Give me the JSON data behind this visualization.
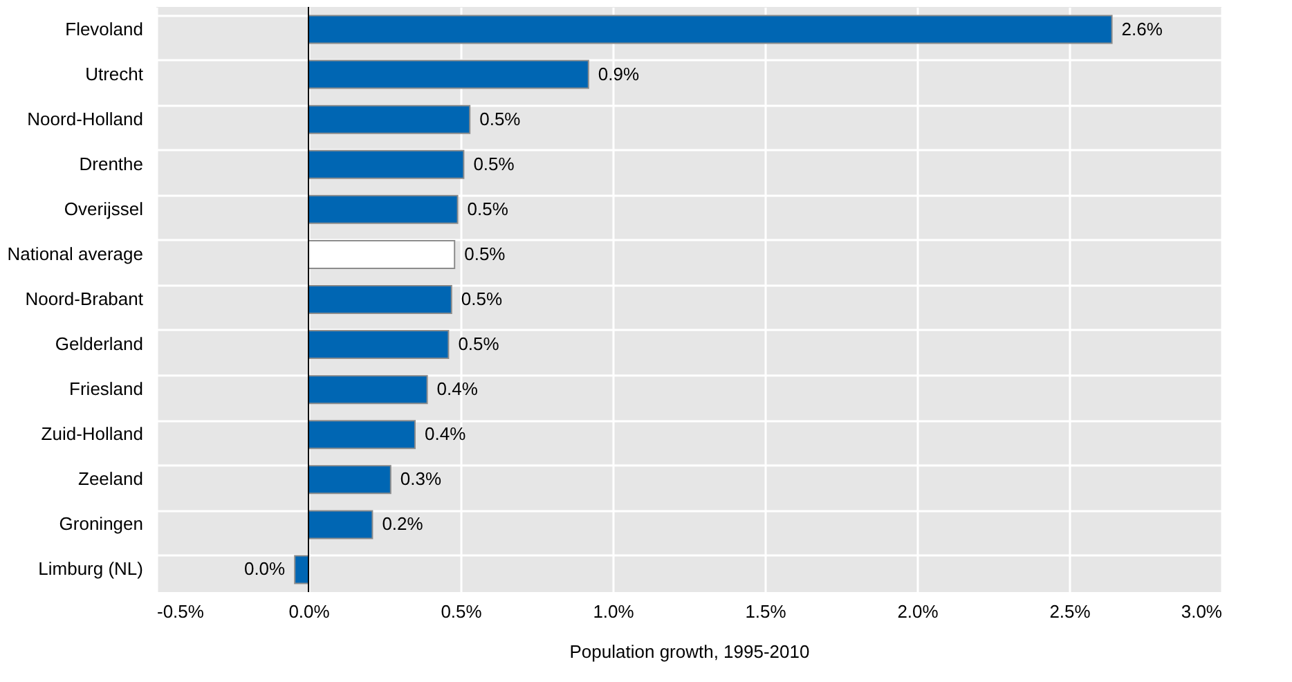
{
  "chart_data": {
    "type": "bar",
    "orientation": "horizontal",
    "xlabel": "Population growth, 1995-2010",
    "categories": [
      "Flevoland",
      "Utrecht",
      "Noord-Holland",
      "Drenthe",
      "Overijssel",
      "National average",
      "Noord-Brabant",
      "Gelderland",
      "Friesland",
      "Zuid-Holland",
      "Zeeland",
      "Groningen",
      "Limburg (NL)"
    ],
    "values": [
      2.64,
      0.92,
      0.53,
      0.51,
      0.49,
      0.48,
      0.47,
      0.46,
      0.39,
      0.35,
      0.27,
      0.21,
      -0.045
    ],
    "value_labels": [
      "2.6%",
      "0.9%",
      "0.5%",
      "0.5%",
      "0.5%",
      "0.5%",
      "0.5%",
      "0.5%",
      "0.4%",
      "0.4%",
      "0.3%",
      "0.2%",
      "0.0%"
    ],
    "colors": [
      "#0066b3",
      "#0066b3",
      "#0066b3",
      "#0066b3",
      "#0066b3",
      "#ffffff",
      "#0066b3",
      "#0066b3",
      "#0066b3",
      "#0066b3",
      "#0066b3",
      "#0066b3",
      "#0066b3"
    ],
    "xlim": [
      -0.5,
      3.0
    ],
    "xticks": [
      {
        "value": -0.5,
        "label": "-0.5%"
      },
      {
        "value": 0,
        "label": "0.0%"
      },
      {
        "value": 0.5,
        "label": "0.5%"
      },
      {
        "value": 1.0,
        "label": "1.0%"
      },
      {
        "value": 1.5,
        "label": "1.5%"
      },
      {
        "value": 2.0,
        "label": "2.0%"
      },
      {
        "value": 2.5,
        "label": "2.5%"
      },
      {
        "value": 3.0,
        "label": "3.0%"
      }
    ],
    "ref_lines": [
      {
        "axis": "x",
        "value": 0,
        "color": "#000000"
      }
    ],
    "grid": true
  }
}
